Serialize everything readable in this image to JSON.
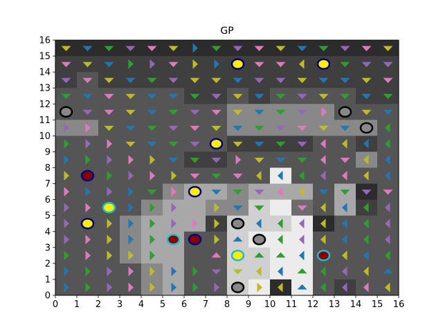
{
  "chart_data": {
    "type": "heatmap",
    "title": "GP",
    "xlabel": "",
    "ylabel": "",
    "xlim": [
      0,
      16
    ],
    "ylim": [
      0,
      16
    ],
    "x_ticks": [
      "0",
      "1",
      "2",
      "3",
      "4",
      "5",
      "6",
      "7",
      "8",
      "9",
      "10",
      "11",
      "12",
      "13",
      "14",
      "15",
      "16"
    ],
    "y_ticks": [
      "0",
      "1",
      "2",
      "3",
      "4",
      "5",
      "6",
      "7",
      "8",
      "9",
      "10",
      "11",
      "12",
      "13",
      "14",
      "15",
      "16"
    ],
    "grid": false,
    "legend": "none",
    "colormap": "greyscale",
    "gray_shades": [
      "#111111",
      "#2c2c2c",
      "#3f3f3f",
      "#555555",
      "#6c6c6c",
      "#888888",
      "#a8a8a8",
      "#d0d0d0",
      "#ececec"
    ],
    "arrow_colors": {
      "Y": "#bcbd22",
      "B": "#1f77b4",
      "G": "#2ca02c",
      "P": "#9467bd",
      "K": "#e377c2"
    },
    "arrow_dirs": {
      "^": "up",
      "v": "down",
      "<": "left",
      ">": "right"
    },
    "cell_values_rows_top_to_bottom": [
      "1111111111111111",
      "2222222222222222",
      "2322222222222222",
      "3333332232333322",
      "3333333355555333",
      "5533333355555553",
      "3333333322223323",
      "3333332233333353",
      "3333333333833333",
      "3333356656663613",
      "3333566557843623",
      "3335666277781333",
      "3335663378883333",
      "3335663377883333",
      "3333563377883333",
      "3333563378183233"
    ],
    "arrows_rows_top_to_bottom": [
      [
        "Yv",
        "Bv",
        "Gv",
        "Pv",
        "Kv",
        "Yv",
        "B>",
        "Gv",
        "Pv",
        "Kv",
        "Yv",
        "Bv",
        "Gv",
        "Pv",
        "Kv",
        "Yv"
      ],
      [
        "Kv",
        "Yv",
        "Bv",
        "G>",
        "P>",
        "Kv",
        "Y>",
        "B>",
        "Pv",
        "Kv",
        "Kv",
        "Y<",
        "Gv",
        "Gv",
        "Pv",
        "Pv"
      ],
      [
        "Pv",
        "Kv",
        "Yv",
        "Bv",
        "Gv",
        "Pv",
        "Yv",
        "Yv",
        "Bv",
        "Pv",
        "Pv",
        "Yv",
        "Bv",
        "Bv",
        "Yv",
        "Kv"
      ],
      [
        "Gv",
        "Bv",
        "Kv",
        "Yv",
        "Bv",
        "Bv",
        "Gv",
        "Pv",
        "Yv",
        "Bv",
        "Gv",
        "Pv",
        "Yv",
        "Gv",
        "Bv",
        "Gv"
      ],
      [
        "",
        "Pv",
        "Kv",
        "Yv",
        "Bv",
        "Gv",
        "Pv",
        "Kv",
        "Yv",
        "Bv",
        "Gv",
        "Pv",
        "K>",
        "",
        "Yv",
        "Bv"
      ],
      [
        "P>",
        "K>",
        "Yv",
        "Bv",
        "Gv",
        "Pv",
        "Kv",
        "Yv",
        "Bv",
        "Gv",
        "Pv",
        "Kv",
        "Yv",
        "Bv",
        "",
        "G<"
      ],
      [
        "G>",
        "P>",
        "K>",
        "Yv",
        "Bv",
        "Gv",
        "Pv",
        "",
        "Yv",
        "Bv",
        "Gv",
        "Pv",
        "K<",
        "Y<",
        "B<",
        "G<"
      ],
      [
        "B>",
        "G>",
        "P>",
        "K>",
        "Y>",
        "Bv",
        "Gv",
        "Pv",
        "K>",
        "Yv",
        "Bv",
        "Gv",
        "K<",
        "Kv",
        "Y<",
        "B<"
      ],
      [
        "Y>",
        "",
        "G>",
        "P>",
        "K>",
        "Y>",
        "Kv",
        "Gv",
        "Kv",
        "Y<",
        "B<",
        "G<",
        "P<",
        "K<",
        "Y<",
        "B<"
      ],
      [
        "K>",
        "B>",
        "P>",
        "B>",
        "Gv",
        "K>",
        "",
        "Bv",
        "Gv",
        "Pv",
        "K<",
        "Y<",
        "Bv",
        "Gv",
        "Pv",
        "Kv"
      ],
      [
        "P>",
        "K>",
        "",
        "B>",
        "G>",
        "P>",
        "",
        "Y>",
        "Bv",
        "Gv",
        "",
        "Kv",
        "Y<",
        "B<",
        "G<",
        "P<"
      ],
      [
        "P>",
        "",
        "Y>",
        "B>",
        "G>",
        "P>",
        "K>",
        "Y>",
        "",
        "B<",
        "G<",
        "P<",
        "Y<",
        "B<",
        "G<",
        "P<"
      ],
      [
        "P>",
        "K>",
        "Y>",
        "B>",
        "G>",
        "P>",
        "K>",
        "Y>",
        "B^",
        "",
        "G<",
        "P<",
        "Y<",
        "B<",
        "G<",
        "P<"
      ],
      [
        "G>",
        "K>",
        "Y>",
        "Y>",
        "G>",
        "",
        "",
        "K^",
        "",
        "G^",
        "G^",
        "B<",
        "",
        "Y<",
        "B<",
        "G<"
      ],
      [
        "B>",
        "G>",
        "P>",
        "K>",
        "Y>",
        "B>",
        "G>",
        "Pv",
        "Yv",
        "Y<",
        "B<",
        "G^",
        "G<",
        "P<",
        "Y<",
        "B^"
      ],
      [
        "B>",
        "G>",
        "P>",
        "K>",
        "Y>",
        "B>",
        "G>",
        "P>",
        "",
        "Y>",
        "Y<",
        "B^",
        "G<",
        "P<",
        "K<",
        "Y<"
      ]
    ],
    "markers": [
      {
        "x": 0.5,
        "y": 11.5,
        "fill": "#888888",
        "edge": "#000000"
      },
      {
        "x": 13.5,
        "y": 11.5,
        "fill": "#888888",
        "edge": "#000000"
      },
      {
        "x": 14.5,
        "y": 10.5,
        "fill": "#888888",
        "edge": "#000000"
      },
      {
        "x": 8.5,
        "y": 14.5,
        "fill": "#ffee00",
        "edge": "#000080"
      },
      {
        "x": 12.5,
        "y": 14.5,
        "fill": "#ffee00",
        "edge": "#000080"
      },
      {
        "x": 7.5,
        "y": 9.5,
        "fill": "#ffee00",
        "edge": "#000080"
      },
      {
        "x": 1.5,
        "y": 7.5,
        "fill": "#8b0000",
        "edge": "#000080"
      },
      {
        "x": 6.5,
        "y": 6.5,
        "fill": "#ffee00",
        "edge": "#000080"
      },
      {
        "x": 2.5,
        "y": 5.5,
        "fill": "#ffee00",
        "edge": "#17becf"
      },
      {
        "x": 1.5,
        "y": 4.5,
        "fill": "#ffee00",
        "edge": "#000080"
      },
      {
        "x": 8.5,
        "y": 4.5,
        "fill": "#888888",
        "edge": "#000000"
      },
      {
        "x": 9.5,
        "y": 3.5,
        "fill": "#888888",
        "edge": "#000000"
      },
      {
        "x": 5.5,
        "y": 3.5,
        "fill": "#8b0000",
        "edge": "#17becf"
      },
      {
        "x": 6.5,
        "y": 3.5,
        "fill": "#8b0000",
        "edge": "#000080"
      },
      {
        "x": 8.5,
        "y": 2.5,
        "fill": "#ffee00",
        "edge": "#17becf"
      },
      {
        "x": 12.5,
        "y": 2.5,
        "fill": "#8b0000",
        "edge": "#17becf"
      },
      {
        "x": 8.5,
        "y": 0.5,
        "fill": "#888888",
        "edge": "#000000"
      }
    ]
  }
}
